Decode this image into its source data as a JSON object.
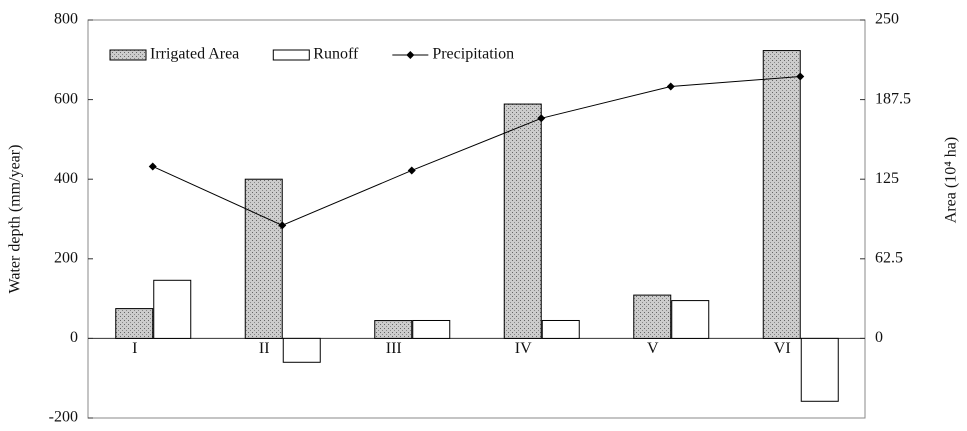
{
  "chart_data": {
    "type": "bar",
    "y_label": "Water depth (mm/year)",
    "y2_label": "Area (10⁴ ha)",
    "categories": [
      "I",
      "II",
      "III",
      "IV",
      "V",
      "VI"
    ],
    "series": [
      {
        "name": "Irrigated Area",
        "type": "bar",
        "axis": "y2",
        "color": "#cccccc",
        "values": [
          23.4,
          125,
          14,
          184,
          34,
          226
        ]
      },
      {
        "name": "Runoff",
        "type": "bar",
        "color": "#ffffff",
        "values": [
          146,
          -60,
          45,
          45,
          95,
          -158
        ]
      },
      {
        "name": "Precipitation",
        "type": "line",
        "color": "#000000",
        "values": [
          432,
          284,
          422,
          553,
          633,
          658
        ]
      }
    ],
    "ylim": [
      -200,
      800
    ],
    "yticks": [
      -200,
      0,
      200,
      400,
      600,
      800
    ],
    "y2lim": [
      -62.5,
      250
    ],
    "y2ticks": [
      0,
      62.5,
      125,
      187.5,
      250
    ],
    "legend": "upper left"
  }
}
